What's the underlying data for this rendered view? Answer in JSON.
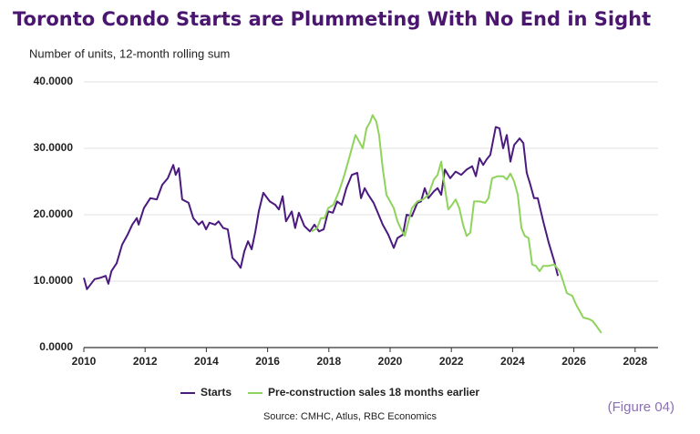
{
  "chart_data": {
    "type": "line",
    "title": "Toronto Condo Starts are Plummeting With No End in Sight",
    "subtitle": "Number of units, 12-month rolling sum",
    "source": "Source: CMHC, Atlus, RBC Economics",
    "figure_label": "(Figure 04)",
    "xlim": [
      2010,
      2028.75
    ],
    "xticks": [
      2010,
      2012,
      2014,
      2016,
      2018,
      2020,
      2022,
      2024,
      2026,
      2028
    ],
    "ylim": [
      0,
      40
    ],
    "yticks": [
      {
        "value": 0,
        "label": "0.0000"
      },
      {
        "value": 10,
        "label": "10.0000"
      },
      {
        "value": 20,
        "label": "20.0000"
      },
      {
        "value": 30,
        "label": "30.0000"
      },
      {
        "value": 40,
        "label": "40.0000"
      }
    ],
    "grid": true,
    "legend": "bottom",
    "series": [
      {
        "name": "Starts",
        "color": "#4b1a7f",
        "x": [
          2010.0,
          2010.1,
          2010.35,
          2010.53,
          2010.71,
          2010.8,
          2010.9,
          2011.07,
          2011.25,
          2011.43,
          2011.58,
          2011.73,
          2011.79,
          2011.96,
          2012.17,
          2012.38,
          2012.56,
          2012.74,
          2012.92,
          2013.0,
          2013.1,
          2013.21,
          2013.42,
          2013.57,
          2013.75,
          2013.87,
          2013.99,
          2014.1,
          2014.29,
          2014.4,
          2014.55,
          2014.7,
          2014.85,
          2015.0,
          2015.12,
          2015.24,
          2015.36,
          2015.48,
          2015.6,
          2015.71,
          2015.86,
          2016.07,
          2016.25,
          2016.37,
          2016.49,
          2016.6,
          2016.79,
          2016.9,
          2017.02,
          2017.2,
          2017.38,
          2017.53,
          2017.68,
          2017.83,
          2017.98,
          2018.13,
          2018.27,
          2018.42,
          2018.57,
          2018.75,
          2018.93,
          2019.05,
          2019.17,
          2019.29,
          2019.46,
          2019.58,
          2019.76,
          2019.94,
          2020.12,
          2020.24,
          2020.42,
          2020.54,
          2020.71,
          2020.89,
          2021.01,
          2021.13,
          2021.25,
          2021.43,
          2021.55,
          2021.67,
          2021.79,
          2021.96,
          2022.14,
          2022.32,
          2022.5,
          2022.68,
          2022.8,
          2022.92,
          2023.04,
          2023.15,
          2023.27,
          2023.45,
          2023.57,
          2023.69,
          2023.81,
          2023.93,
          2024.05,
          2024.23,
          2024.35,
          2024.46,
          2024.58,
          2024.7,
          2024.82,
          2025.0,
          2025.18,
          2025.36,
          2025.48
        ],
        "values": [
          10.5,
          8.8,
          10.3,
          10.5,
          10.8,
          9.6,
          11.5,
          12.7,
          15.5,
          17.0,
          18.5,
          19.5,
          18.5,
          21.0,
          22.5,
          22.3,
          24.5,
          25.5,
          27.5,
          26.0,
          27.0,
          22.3,
          21.8,
          19.5,
          18.5,
          19.0,
          17.8,
          18.8,
          18.5,
          19.0,
          18.0,
          17.8,
          13.5,
          12.8,
          12.0,
          14.5,
          16.0,
          14.8,
          17.5,
          20.5,
          23.3,
          22.0,
          21.5,
          20.8,
          22.8,
          19.0,
          20.5,
          18.0,
          20.3,
          18.3,
          17.5,
          18.5,
          17.5,
          17.8,
          20.5,
          20.3,
          22.0,
          21.5,
          24.0,
          26.0,
          26.3,
          22.5,
          24.0,
          23.0,
          21.8,
          20.5,
          18.5,
          17.0,
          15.0,
          16.5,
          17.0,
          20.0,
          19.8,
          21.8,
          22.0,
          24.0,
          22.5,
          23.5,
          24.0,
          23.0,
          26.8,
          25.5,
          26.5,
          26.0,
          26.8,
          27.3,
          25.8,
          28.5,
          27.5,
          28.3,
          29.0,
          33.2,
          33.0,
          30.0,
          32.0,
          28.0,
          30.5,
          31.5,
          30.8,
          26.3,
          24.5,
          22.5,
          22.5,
          19.0,
          15.8,
          13.0,
          10.8
        ]
      },
      {
        "name": "Pre-construction sales 18 months earlier",
        "color": "#8fd35c",
        "x": [
          2017.44,
          2017.62,
          2017.74,
          2017.86,
          2017.98,
          2018.15,
          2018.33,
          2018.51,
          2018.69,
          2018.87,
          2018.99,
          2019.11,
          2019.23,
          2019.35,
          2019.43,
          2019.55,
          2019.64,
          2019.76,
          2019.88,
          2020.0,
          2020.12,
          2020.24,
          2020.36,
          2020.48,
          2020.6,
          2020.71,
          2020.89,
          2021.07,
          2021.25,
          2021.43,
          2021.55,
          2021.67,
          2021.79,
          2021.9,
          2022.02,
          2022.14,
          2022.26,
          2022.38,
          2022.5,
          2022.62,
          2022.74,
          2022.92,
          2023.1,
          2023.21,
          2023.33,
          2023.51,
          2023.69,
          2023.81,
          2023.93,
          2024.05,
          2024.17,
          2024.29,
          2024.4,
          2024.52,
          2024.64,
          2024.76,
          2024.88,
          2025.0,
          2025.18,
          2025.36,
          2025.54,
          2025.65,
          2025.77,
          2025.95,
          2026.07,
          2026.19,
          2026.31,
          2026.49,
          2026.61,
          2026.73,
          2026.9
        ],
        "values": [
          17.5,
          18.0,
          19.5,
          19.5,
          21.0,
          21.5,
          23.5,
          26.0,
          29.0,
          32.0,
          31.0,
          30.0,
          33.0,
          34.0,
          35.0,
          34.0,
          32.0,
          27.0,
          23.0,
          22.0,
          21.0,
          19.0,
          17.8,
          16.8,
          19.0,
          21.0,
          22.0,
          22.3,
          23.0,
          25.3,
          26.0,
          28.0,
          24.0,
          20.8,
          21.5,
          22.3,
          21.0,
          18.5,
          16.8,
          17.3,
          22.0,
          22.0,
          21.8,
          22.5,
          25.5,
          25.8,
          25.8,
          25.3,
          26.2,
          25.0,
          23.0,
          18.0,
          16.8,
          16.5,
          12.5,
          12.3,
          11.5,
          12.3,
          12.3,
          12.5,
          11.5,
          10.0,
          8.2,
          7.8,
          6.5,
          5.5,
          4.5,
          4.3,
          4.0,
          3.3,
          2.2
        ]
      }
    ]
  }
}
